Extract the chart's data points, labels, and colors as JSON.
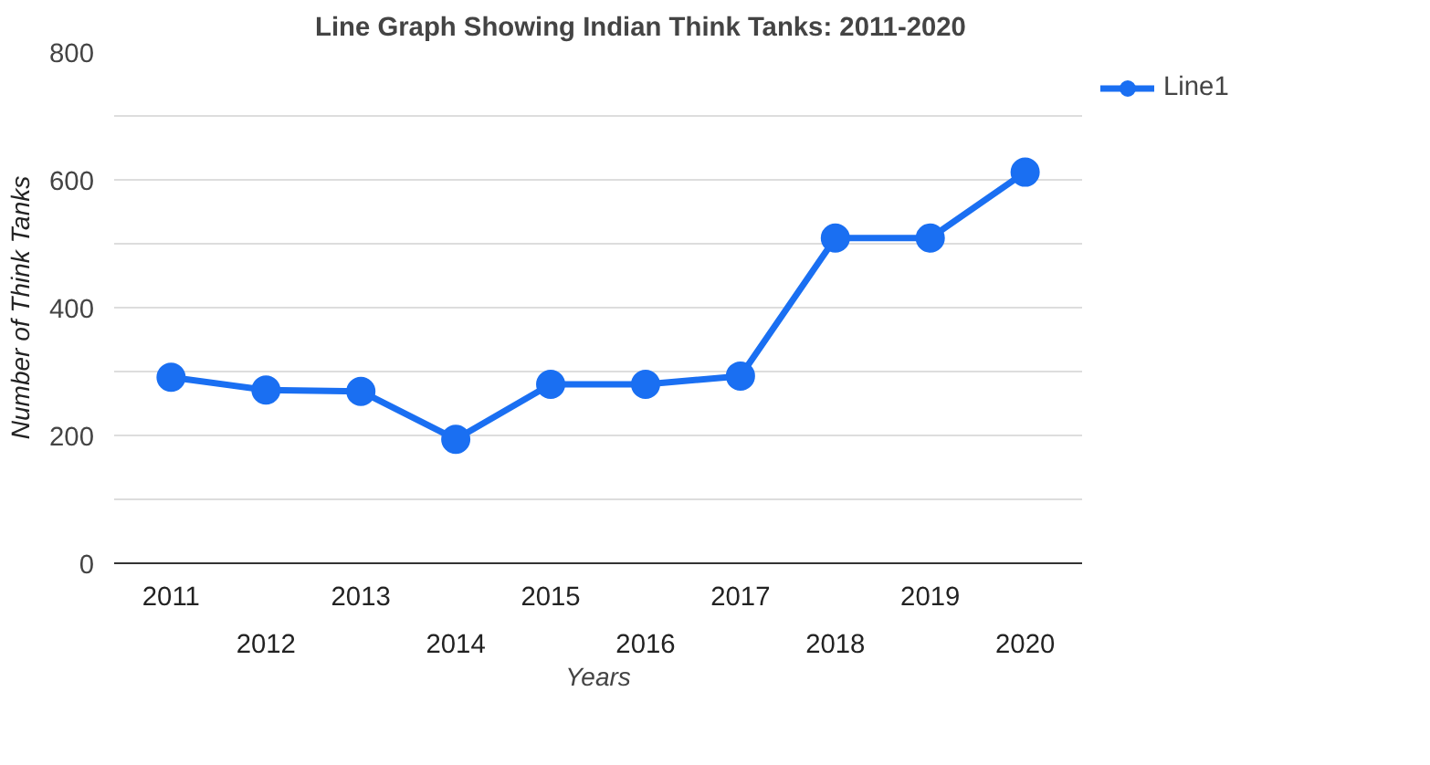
{
  "chart_data": {
    "type": "line",
    "title": "Line Graph Showing Indian Think Tanks: 2011-2020",
    "xlabel": "Years",
    "ylabel": "Number of Think Tanks",
    "categories": [
      "2011",
      "2012",
      "2013",
      "2014",
      "2015",
      "2016",
      "2017",
      "2018",
      "2019",
      "2020"
    ],
    "series": [
      {
        "name": "Line1",
        "color": "#1a6ff2",
        "values": [
          291,
          271,
          269,
          194,
          280,
          280,
          293,
          509,
          509,
          612
        ]
      }
    ],
    "ylim": [
      0,
      800
    ],
    "yticks": [
      0,
      {
        "value": 100,
        "label": null
      },
      200,
      {
        "value": 300,
        "label": null
      },
      400,
      {
        "value": 500,
        "label": null
      },
      600,
      {
        "value": 700,
        "label": null
      },
      800
    ],
    "grid": "y",
    "legend": "top right",
    "marker": "circle",
    "line_style": "solid"
  }
}
